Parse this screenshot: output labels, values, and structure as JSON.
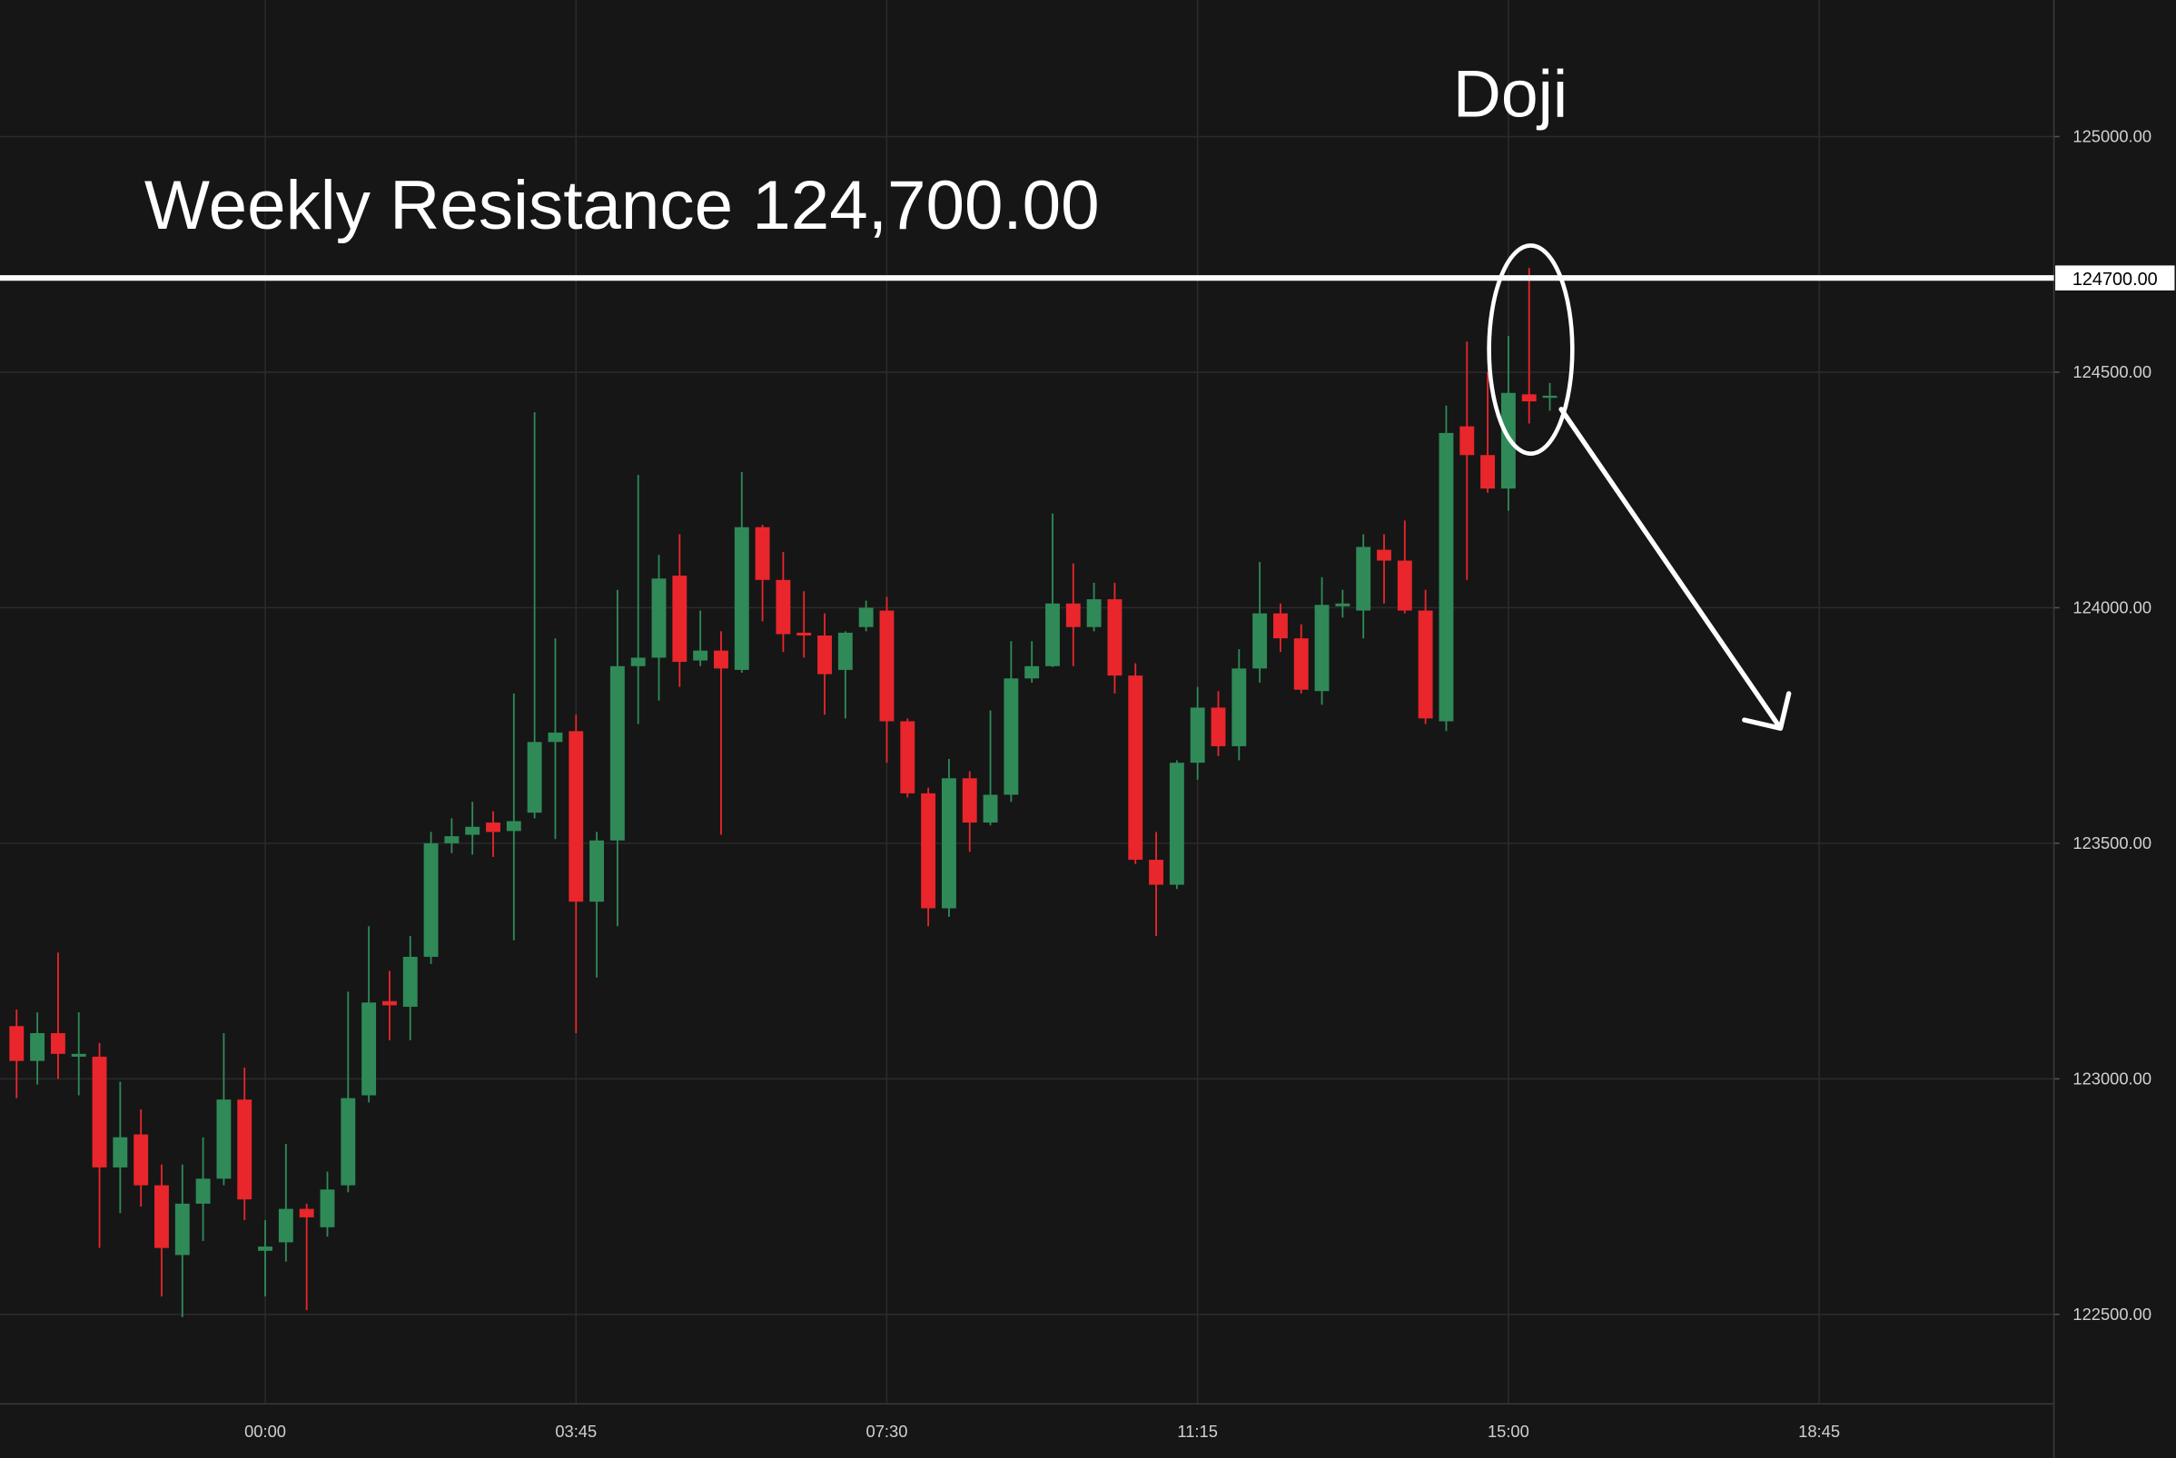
{
  "chart_data": {
    "type": "candlestick",
    "categories": [
      null,
      null,
      null,
      null,
      null,
      null,
      null,
      null,
      null,
      null,
      null,
      null,
      "00:00",
      null,
      null,
      null,
      null,
      null,
      null,
      null,
      null,
      null,
      null,
      null,
      null,
      null,
      null,
      "03:45",
      null,
      null,
      null,
      null,
      null,
      null,
      null,
      null,
      null,
      null,
      null,
      null,
      null,
      null,
      "07:30",
      null,
      null,
      null,
      null,
      null,
      null,
      null,
      null,
      null,
      null,
      null,
      null,
      null,
      null,
      "11:15",
      null,
      null,
      null,
      null,
      null,
      null,
      null,
      null,
      null,
      null,
      null,
      null,
      null,
      null,
      "15:00",
      null,
      null,
      null,
      null,
      null,
      null,
      null,
      null,
      null,
      null,
      null,
      null,
      null,
      null,
      "18:45",
      null,
      null,
      null,
      null,
      null,
      null,
      null,
      null,
      null,
      null,
      null
    ],
    "open": [
      123112,
      123038,
      123097,
      123047,
      123047,
      122812,
      122882,
      122774,
      122626,
      122735,
      122788,
      122956,
      122635,
      122653,
      122724,
      122685,
      122774,
      122965,
      123165,
      123153,
      123259,
      123500,
      123518,
      123544,
      123526,
      123565,
      123715,
      123738,
      123376,
      123506,
      123876,
      123894,
      124068,
      123888,
      123909,
      123868,
      124171,
      124059,
      123947,
      123941,
      123868,
      123959,
      123994,
      123759,
      123606,
      123362,
      123638,
      123544,
      123603,
      123850,
      123876,
      124009,
      123959,
      124018,
      123856,
      123465,
      123412,
      123671,
      123788,
      123706,
      123871,
      123988,
      123935,
      123823,
      124003,
      123994,
      124123,
      124100,
      123994,
      123759,
      124385,
      124324,
      124253,
      124453,
      124447,
      null,
      null,
      null,
      null,
      null,
      null,
      null,
      null,
      null,
      null,
      null,
      null,
      null,
      null,
      null,
      null,
      null,
      null,
      null,
      null,
      null,
      null,
      null,
      null
    ],
    "high": [
      123147,
      123141,
      123268,
      123141,
      123076,
      122994,
      122935,
      122818,
      122818,
      122876,
      123097,
      123024,
      122700,
      122862,
      122735,
      122803,
      123185,
      123324,
      123229,
      123303,
      123524,
      123553,
      123588,
      123568,
      123818,
      124415,
      123935,
      123773,
      123524,
      124038,
      124282,
      124112,
      124156,
      123994,
      123950,
      124288,
      124176,
      124118,
      124035,
      123988,
      123950,
      124015,
      124023,
      123765,
      123618,
      123679,
      123653,
      123782,
      123929,
      123929,
      124200,
      124094,
      124053,
      124053,
      123882,
      123524,
      123676,
      123832,
      123823,
      123912,
      124097,
      124009,
      123965,
      124065,
      124038,
      124156,
      124156,
      124185,
      124038,
      124429,
      124565,
      124500,
      124577,
      124721,
      124477,
      null,
      null,
      null,
      null,
      null,
      null,
      null,
      null,
      null,
      null,
      null,
      null,
      null,
      null,
      null,
      null,
      null,
      null,
      null,
      null,
      null,
      null,
      null,
      null
    ],
    "low": [
      122959,
      122988,
      123000,
      122965,
      122641,
      122715,
      122729,
      122538,
      122494,
      122656,
      122774,
      122700,
      122538,
      122612,
      122509,
      122665,
      122759,
      122950,
      123082,
      123082,
      123244,
      123479,
      123476,
      123471,
      123294,
      123553,
      123509,
      123097,
      123215,
      123324,
      123753,
      123803,
      123832,
      123876,
      123518,
      123862,
      123971,
      123906,
      123894,
      123773,
      123765,
      123950,
      123671,
      123597,
      123324,
      123344,
      123482,
      123538,
      123588,
      123841,
      123874,
      123876,
      123950,
      123818,
      123456,
      123303,
      123403,
      123635,
      123685,
      123676,
      123841,
      123906,
      123818,
      123794,
      123979,
      123935,
      124009,
      123988,
      123753,
      123738,
      124059,
      124244,
      124206,
      124391,
      124418,
      null,
      null,
      null,
      null,
      null,
      null,
      null,
      null,
      null,
      null,
      null,
      null,
      null,
      null,
      null,
      null,
      null,
      null,
      null,
      null,
      null,
      null,
      null,
      null
    ],
    "close": [
      123038,
      123097,
      123053,
      123053,
      122812,
      122876,
      122774,
      122641,
      122735,
      122788,
      122956,
      122744,
      122644,
      122724,
      122706,
      122765,
      122959,
      123162,
      123156,
      123259,
      123500,
      123515,
      123535,
      123524,
      123547,
      123715,
      123735,
      123376,
      123506,
      123876,
      123894,
      124062,
      123885,
      123909,
      123871,
      124171,
      124059,
      123944,
      123941,
      123859,
      123947,
      124000,
      123759,
      123606,
      123362,
      123638,
      123544,
      123603,
      123850,
      123876,
      124009,
      123959,
      124018,
      123856,
      123465,
      123412,
      123671,
      123788,
      123706,
      123871,
      123988,
      123935,
      123826,
      124006,
      124009,
      124129,
      124100,
      123994,
      123765,
      124371,
      124324,
      124253,
      124456,
      124438,
      124450,
      null,
      null,
      null,
      null,
      null,
      null,
      null,
      null,
      null,
      null,
      null,
      null,
      null,
      null,
      null,
      null,
      null,
      null,
      null,
      null,
      null,
      null,
      null,
      null
    ],
    "up_color": "#2f8a57",
    "down_color": "#e8262b",
    "ylim": [
      122310,
      125290
    ],
    "yticks": [
      {
        "value": 122500,
        "label": "122500.00"
      },
      {
        "value": 123000,
        "label": "123000.00"
      },
      {
        "value": 123500,
        "label": "123500.00"
      },
      {
        "value": 124000,
        "label": "124000.00"
      },
      {
        "value": 124500,
        "label": "124500.00"
      },
      {
        "value": 125000,
        "label": "125000.00"
      }
    ],
    "grid": true,
    "resistance": {
      "value": 124700,
      "label": "124700.00"
    },
    "annotations": [
      {
        "text": "Weekly Resistance 124,700.00"
      },
      {
        "text": "Doji"
      }
    ]
  }
}
